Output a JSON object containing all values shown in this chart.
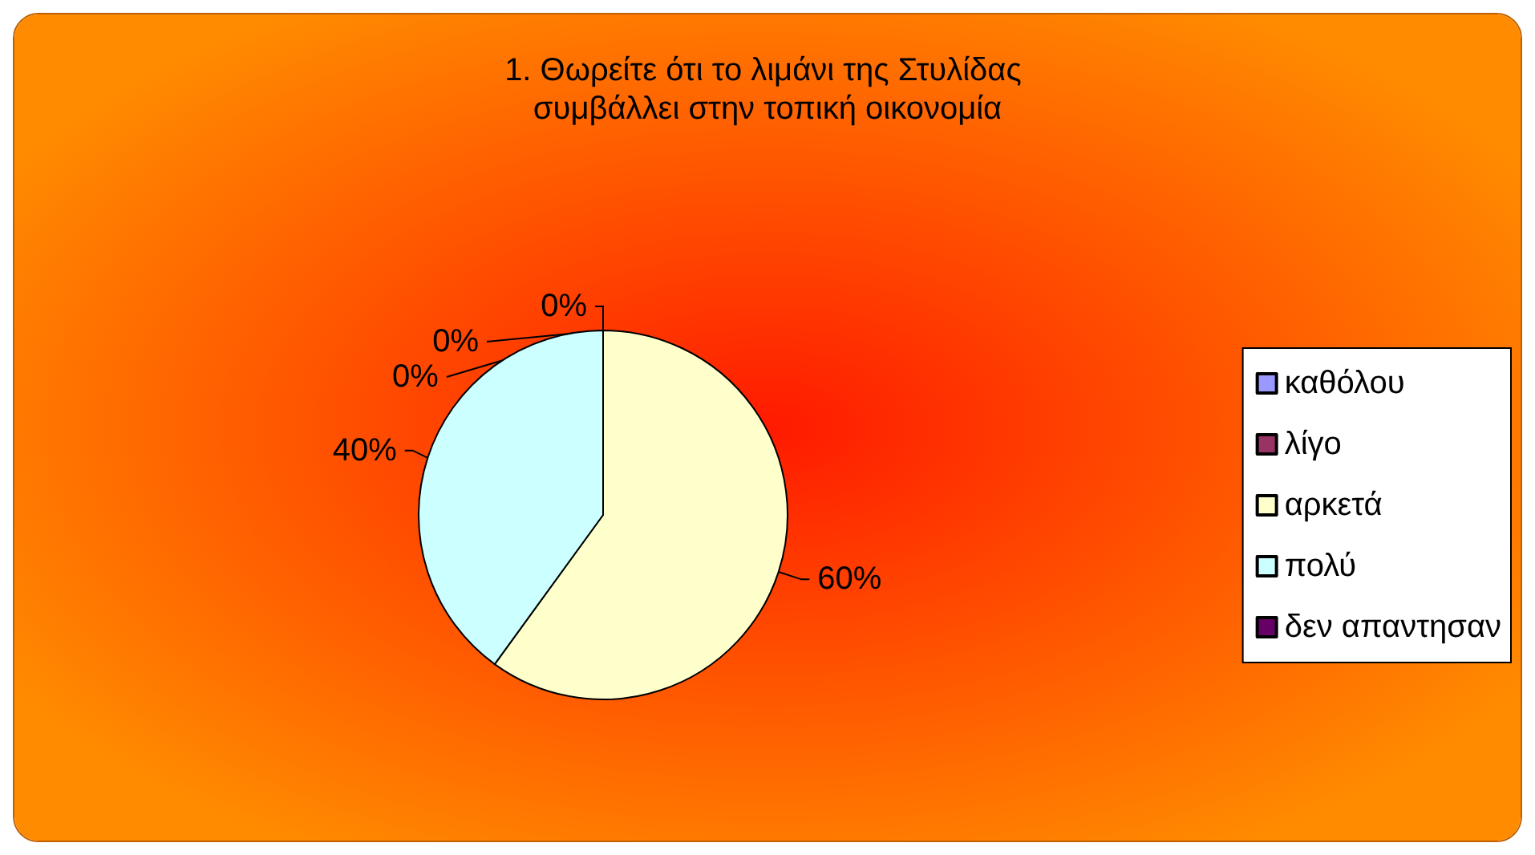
{
  "chart_data": {
    "type": "pie",
    "title": "1. Θωρείτε ότι το λιμάνι της Στυλίδας συμβάλλει στην τοπική οικονομία",
    "categories": [
      "καθόλου",
      "λίγο",
      "αρκετά",
      "πολύ",
      "δεν απαντησαν"
    ],
    "values": [
      0,
      0,
      60,
      40,
      0
    ],
    "colors": [
      "#9999ff",
      "#993366",
      "#ffffcc",
      "#ccffff",
      "#660066"
    ],
    "value_labels": [
      "0%",
      "0%",
      "60%",
      "40%",
      "0%"
    ],
    "legend": "right"
  }
}
